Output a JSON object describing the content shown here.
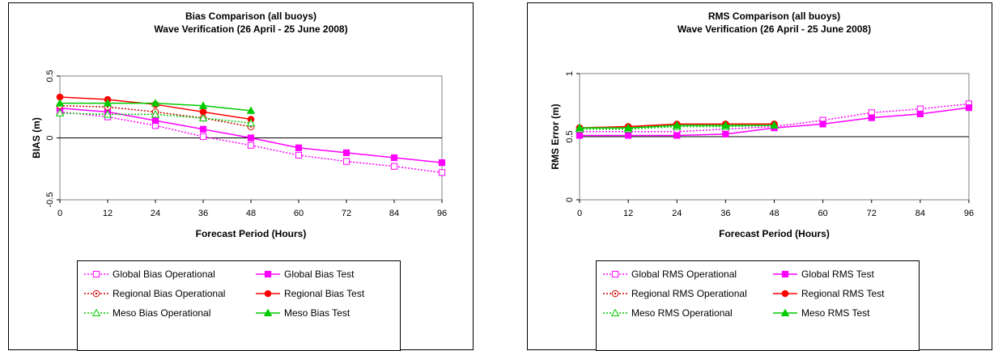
{
  "chart_data": [
    {
      "type": "line",
      "title": "Bias Comparison (all buoys)",
      "subtitle": "Wave Verification (26 April - 25 June 2008)",
      "xlabel": "Forecast Period (Hours)",
      "ylabel": "BIAS (m)",
      "xlim": [
        0,
        96
      ],
      "ylim": [
        -0.5,
        0.5
      ],
      "x_ticks": [
        "0",
        "12",
        "24",
        "36",
        "48",
        "60",
        "72",
        "84",
        "96"
      ],
      "y_ticks": [
        "0.5",
        "0",
        "-0.5"
      ],
      "y_tick_values": [
        0.5,
        0,
        -0.5
      ],
      "reference_line": 0,
      "series": [
        {
          "name": "Global Bias Operational",
          "color": "#ff00ff",
          "dashed": true,
          "marker": "square-open",
          "x": [
            0,
            12,
            24,
            36,
            48,
            60,
            72,
            84,
            96
          ],
          "y": [
            0.21,
            0.17,
            0.1,
            0.01,
            -0.06,
            -0.14,
            -0.19,
            -0.23,
            -0.28
          ]
        },
        {
          "name": "Global Bias Test",
          "color": "#ff00ff",
          "dashed": false,
          "marker": "square-filled",
          "x": [
            0,
            12,
            24,
            36,
            48,
            60,
            72,
            84,
            96
          ],
          "y": [
            0.24,
            0.21,
            0.14,
            0.07,
            0.0,
            -0.08,
            -0.12,
            -0.16,
            -0.2
          ]
        },
        {
          "name": "Regional Bias Operational",
          "color": "#cc0000",
          "dashed": true,
          "marker": "circle-dot",
          "x": [
            0,
            12,
            24,
            36,
            48
          ],
          "y": [
            0.26,
            0.25,
            0.21,
            0.16,
            0.09
          ]
        },
        {
          "name": "Regional Bias Test",
          "color": "#ff0000",
          "dashed": false,
          "marker": "circle-filled",
          "x": [
            0,
            12,
            24,
            36,
            48
          ],
          "y": [
            0.33,
            0.31,
            0.27,
            0.21,
            0.15
          ]
        },
        {
          "name": "Meso Bias Operational",
          "color": "#00cc00",
          "dashed": true,
          "marker": "triangle-open",
          "x": [
            0,
            12,
            24,
            36,
            48
          ],
          "y": [
            0.2,
            0.19,
            0.19,
            0.16,
            0.12
          ]
        },
        {
          "name": "Meso Bias Test",
          "color": "#00cc00",
          "dashed": false,
          "marker": "triangle-filled",
          "x": [
            0,
            12,
            24,
            36,
            48
          ],
          "y": [
            0.28,
            0.28,
            0.28,
            0.26,
            0.22
          ]
        }
      ]
    },
    {
      "type": "line",
      "title": "RMS Comparison (all buoys)",
      "subtitle": "Wave Verification (26 April - 25 June 2008)",
      "xlabel": "Forecast Period (Hours)",
      "ylabel": "RMS Error (m)",
      "xlim": [
        0,
        96
      ],
      "ylim": [
        0,
        1
      ],
      "x_ticks": [
        "0",
        "12",
        "24",
        "36",
        "48",
        "60",
        "72",
        "84",
        "96"
      ],
      "y_ticks": [
        "1",
        "0.5",
        "0"
      ],
      "y_tick_values": [
        1,
        0.5,
        0
      ],
      "reference_line": 0.5,
      "series": [
        {
          "name": "Global RMS Operational",
          "color": "#ff00ff",
          "dashed": true,
          "marker": "square-open",
          "x": [
            0,
            12,
            24,
            36,
            48,
            60,
            72,
            84,
            96
          ],
          "y": [
            0.54,
            0.54,
            0.54,
            0.56,
            0.58,
            0.63,
            0.69,
            0.72,
            0.76
          ]
        },
        {
          "name": "Global RMS Test",
          "color": "#ff00ff",
          "dashed": false,
          "marker": "square-filled",
          "x": [
            0,
            12,
            24,
            36,
            48,
            60,
            72,
            84,
            96
          ],
          "y": [
            0.51,
            0.51,
            0.51,
            0.52,
            0.57,
            0.6,
            0.65,
            0.68,
            0.73
          ]
        },
        {
          "name": "Regional RMS Operational",
          "color": "#cc0000",
          "dashed": true,
          "marker": "circle-dot",
          "x": [
            0,
            12,
            24,
            36,
            48
          ],
          "y": [
            0.57,
            0.58,
            0.59,
            0.6,
            0.6
          ]
        },
        {
          "name": "Regional RMS Test",
          "color": "#ff0000",
          "dashed": false,
          "marker": "circle-filled",
          "x": [
            0,
            12,
            24,
            36,
            48
          ],
          "y": [
            0.57,
            0.58,
            0.6,
            0.6,
            0.6
          ]
        },
        {
          "name": "Meso RMS Operational",
          "color": "#00cc00",
          "dashed": true,
          "marker": "triangle-open",
          "x": [
            0,
            12,
            24,
            36,
            48
          ],
          "y": [
            0.56,
            0.56,
            0.58,
            0.58,
            0.59
          ]
        },
        {
          "name": "Meso RMS Test",
          "color": "#00cc00",
          "dashed": false,
          "marker": "triangle-filled",
          "x": [
            0,
            12,
            24,
            36,
            48
          ],
          "y": [
            0.57,
            0.57,
            0.59,
            0.59,
            0.59
          ]
        }
      ]
    }
  ]
}
